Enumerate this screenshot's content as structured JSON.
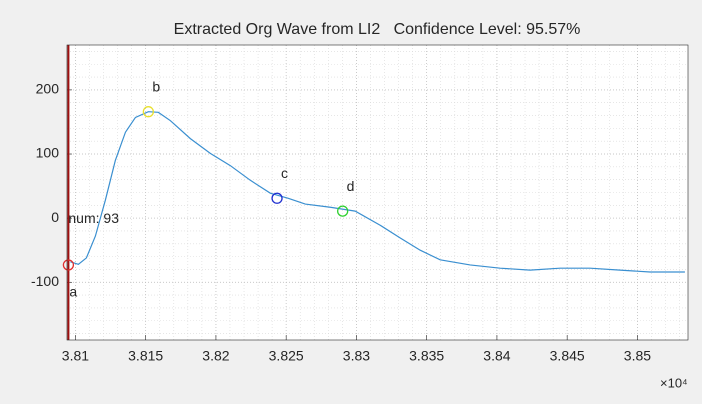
{
  "chart_data": {
    "type": "line",
    "title": "Extracted Org Wave from LI2   Confidence Level: 95.57%",
    "x_exponent_label": "×10⁴",
    "x": [
      3.80964,
      3.81021,
      3.81078,
      3.81142,
      3.81213,
      3.81284,
      3.81356,
      3.81427,
      3.81519,
      3.8159,
      3.81676,
      3.81818,
      3.8196,
      3.82102,
      3.82245,
      3.82387,
      3.82515,
      3.82636,
      3.82814,
      3.82991,
      3.83169,
      3.83312,
      3.83454,
      3.83596,
      3.83809,
      3.84023,
      3.84236,
      3.84449,
      3.84663,
      3.84876,
      3.8509,
      3.85338
    ],
    "series": [
      {
        "color": "#3a8fd0",
        "values": [
          -68,
          -72,
          -62,
          -28,
          28,
          90,
          134,
          157,
          166,
          165,
          152,
          124,
          101,
          82,
          59,
          39,
          31,
          22,
          17,
          11,
          -11,
          -31,
          -50,
          -65,
          -73,
          -78,
          -81,
          -78,
          -78,
          -81,
          -84,
          -84
        ]
      }
    ],
    "points": [
      {
        "label": "a",
        "x": 3.8095,
        "y": -73,
        "color": "#e03030",
        "label_position": "below"
      },
      {
        "label": "b",
        "x": 3.81519,
        "y": 166,
        "color": "#e8e030",
        "label_position": "above"
      },
      {
        "label": "c",
        "x": 3.82435,
        "y": 31,
        "color": "#2030d0",
        "label_position": "above"
      },
      {
        "label": "d",
        "x": 3.82902,
        "y": 11,
        "color": "#30d030",
        "label_position": "above"
      }
    ],
    "cursor": {
      "x": 3.8095,
      "color": "#a01010",
      "text": "num: 93"
    },
    "xlim": [
      3.8094,
      3.8536
    ],
    "ylim": [
      -190,
      270
    ],
    "xticks": [
      3.81,
      3.815,
      3.82,
      3.825,
      3.83,
      3.835,
      3.84,
      3.845,
      3.85
    ],
    "yticks": [
      -100,
      0,
      100,
      200
    ],
    "grid": true,
    "minor_grid": true
  }
}
